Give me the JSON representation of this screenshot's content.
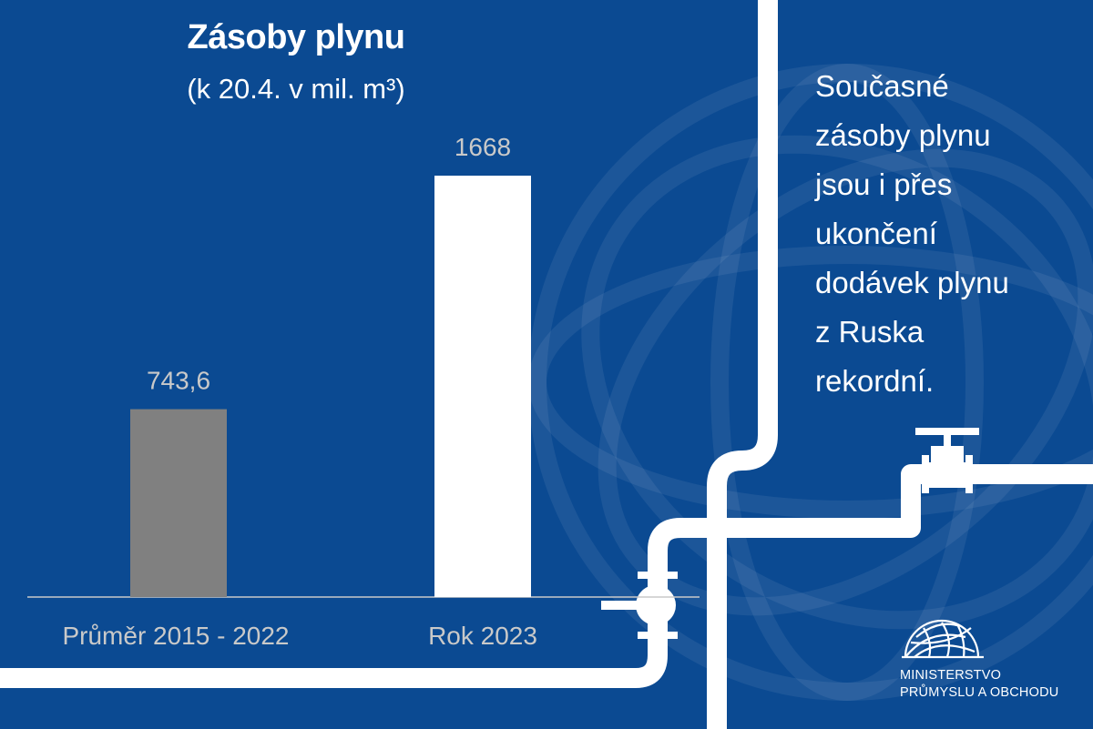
{
  "chart_data": {
    "type": "bar",
    "title": "Zásoby plynu",
    "subtitle": "(k 20.4. v mil. m³)",
    "categories": [
      "Průměr 2015 - 2022",
      "Rok 2023"
    ],
    "values": [
      743.6,
      1668
    ],
    "value_labels": [
      "743,6",
      "1668"
    ],
    "ylim": [
      0,
      1668
    ],
    "grid": false,
    "legend": "none",
    "colors": [
      "#808080",
      "#ffffff"
    ],
    "tick_label_color": "#c9c9c9",
    "value_label_color": "#c9c9c9"
  },
  "side_text": "Současné\nzásoby plynu\njsou i přes\nukončení\ndodávek plynu\nz Ruska\nrekordní.",
  "logo": {
    "icon": "globe-icon",
    "line1": "MINISTERSTVO",
    "line2": "PRŮMYSLU A OBCHODU"
  },
  "theme": {
    "background": "#0b4a92",
    "pipe": "#ffffff"
  }
}
